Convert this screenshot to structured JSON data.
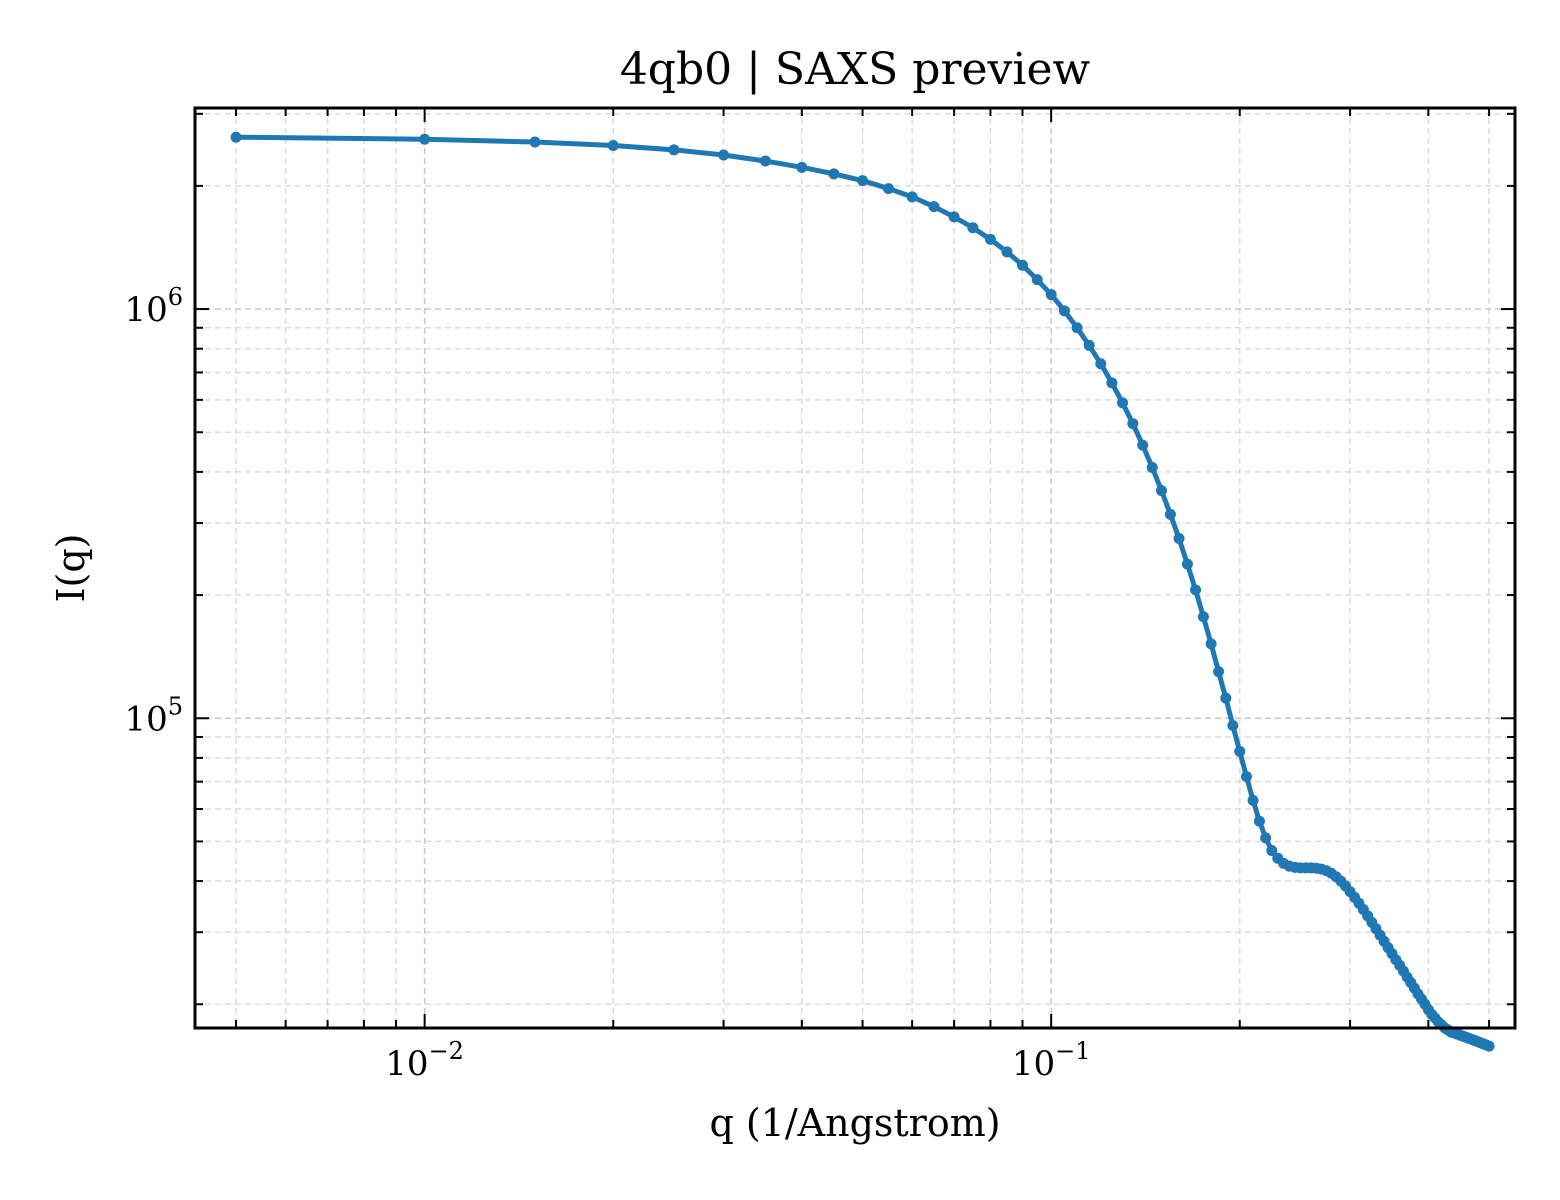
{
  "chart_data": {
    "type": "line",
    "title": "4qb0 | SAXS preview",
    "xlabel": "q (1/Angstrom)",
    "ylabel": "I(q)",
    "xscale": "log",
    "yscale": "log",
    "xlim": [
      0.0043,
      0.55
    ],
    "ylim": [
      17500,
      3100000
    ],
    "grid": true,
    "legend": "none",
    "x_ticks": [
      {
        "value": 0.01,
        "base": "10",
        "exp": "−2"
      },
      {
        "value": 0.1,
        "base": "10",
        "exp": "−1"
      }
    ],
    "y_ticks": [
      {
        "value": 100000,
        "base": "10",
        "exp": "5"
      },
      {
        "value": 1000000,
        "base": "10",
        "exp": "6"
      }
    ],
    "series": [
      {
        "color": "#1f77b4",
        "x": [
          0.005,
          0.01,
          0.015,
          0.02,
          0.025,
          0.03,
          0.035,
          0.04,
          0.045,
          0.05,
          0.055,
          0.06,
          0.065,
          0.07,
          0.075,
          0.08,
          0.085,
          0.09,
          0.095,
          0.1,
          0.105,
          0.11,
          0.115,
          0.12,
          0.125,
          0.13,
          0.135,
          0.14,
          0.145,
          0.15,
          0.155,
          0.16,
          0.165,
          0.17,
          0.175,
          0.18,
          0.185,
          0.19,
          0.195,
          0.2,
          0.205,
          0.21,
          0.215,
          0.22,
          0.225,
          0.23,
          0.235,
          0.24,
          0.245,
          0.25,
          0.255,
          0.26,
          0.265,
          0.27,
          0.275,
          0.28,
          0.285,
          0.29,
          0.295,
          0.3,
          0.305,
          0.31,
          0.315,
          0.32,
          0.325,
          0.33,
          0.335,
          0.34,
          0.345,
          0.35,
          0.355,
          0.36,
          0.365,
          0.37,
          0.375,
          0.38,
          0.385,
          0.39,
          0.395,
          0.4,
          0.405,
          0.41,
          0.415,
          0.42,
          0.425,
          0.43,
          0.435,
          0.44,
          0.445,
          0.45,
          0.455,
          0.46,
          0.465,
          0.47,
          0.475,
          0.48,
          0.485,
          0.49,
          0.495,
          0.5
        ],
        "y": [
          2630000,
          2600000,
          2560000,
          2510000,
          2450000,
          2380000,
          2300000,
          2220000,
          2140000,
          2060000,
          1970000,
          1880000,
          1780000,
          1680000,
          1580000,
          1480000,
          1380000,
          1280000,
          1180000,
          1085000,
          990000,
          900000,
          815000,
          735000,
          660000,
          590000,
          525000,
          465000,
          410000,
          360000,
          315000,
          275000,
          238000,
          206000,
          177000,
          152000,
          130000,
          112000,
          96000,
          83000,
          72000,
          63000,
          56000,
          51000,
          47500,
          45500,
          44200,
          43500,
          43200,
          43100,
          43100,
          43100,
          43000,
          42800,
          42400,
          41800,
          41000,
          40000,
          38900,
          37700,
          36500,
          35300,
          34100,
          32900,
          31700,
          30600,
          29500,
          28500,
          27500,
          26600,
          25700,
          24900,
          24100,
          23300,
          22600,
          21900,
          21200,
          20600,
          20000,
          19400,
          18900,
          18500,
          18100,
          17800,
          17500,
          17300,
          17100,
          17000,
          16900,
          16800,
          16700,
          16600,
          16500,
          16400,
          16300,
          16200,
          16100,
          16000,
          15900,
          15800
        ]
      }
    ]
  }
}
